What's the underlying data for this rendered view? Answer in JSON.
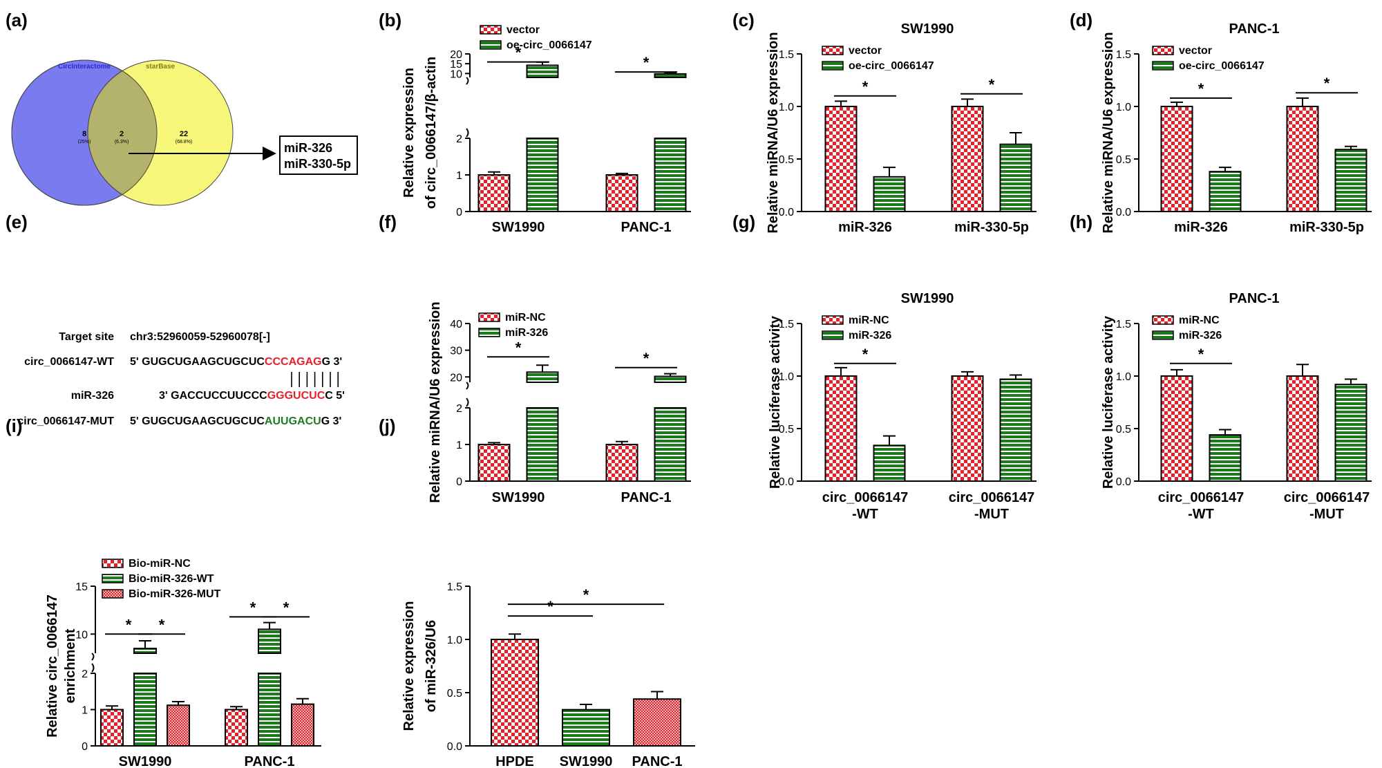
{
  "panel_labels": [
    "(a)",
    "(b)",
    "(c)",
    "(d)",
    "(e)",
    "(f)",
    "(g)",
    "(h)",
    "(i)",
    "(j)"
  ],
  "colors": {
    "red": "#e8202a",
    "green": "#1f7a1f",
    "venn_blue": "#7b7bf0",
    "venn_yellow": "#f7f77a",
    "venn_overlap": "#b3b36b"
  },
  "venn": {
    "left_label": "CircInteractome",
    "right_label": "starBase",
    "left_count": "8",
    "left_pct": "(25%)",
    "overlap_count": "2",
    "overlap_pct": "(6.3%)",
    "right_count": "22",
    "right_pct": "(68.8%)",
    "result_lines": [
      "miR-326",
      "miR-330-5p"
    ]
  },
  "sequences": {
    "target_label": "Target site",
    "target_value": "chr3:52960059-52960078[-]",
    "rows": [
      {
        "label": "circ_0066147-WT",
        "prefix": "5' GUGCUGAAGCUGCUC",
        "highlight": "CCCAGAG",
        "suffix": "G 3'",
        "color": "red"
      },
      {
        "label": "miR-326",
        "prefix": "3' GACCUCCUUCCC",
        "highlight": "GGGUCUC",
        "suffix": "C 5'",
        "color": "red"
      },
      {
        "label": "circ_0066147-MUT",
        "prefix": "5' GUGCUGAAGCUGCUC",
        "highlight": "AUUGACU",
        "suffix": "G 3'",
        "color": "green"
      }
    ],
    "pairing_lines": 7
  },
  "chart_data": [
    {
      "id": "b",
      "type": "bar",
      "title": "",
      "ylabel": [
        "Relative expression",
        "of circ_0066147/β-actin"
      ],
      "categories": [
        "SW1990",
        "PANC-1"
      ],
      "break": {
        "lower": [
          0,
          2
        ],
        "upper": [
          8,
          20
        ],
        "lower_ticks": [
          "0",
          "1",
          "2"
        ],
        "upper_ticks": [
          "10",
          "15",
          "20"
        ],
        "lower_tick_values": [
          0,
          1,
          2
        ],
        "upper_tick_values": [
          10,
          15,
          20
        ]
      },
      "series": [
        {
          "name": "vector",
          "pattern": "checker",
          "values": [
            1.0,
            1.0
          ],
          "errors": [
            0.08,
            0.04
          ]
        },
        {
          "name": "oe-circ_0066147",
          "pattern": "stripe",
          "values": [
            14.2,
            9.8
          ],
          "errors": [
            1.6,
            0.7
          ]
        }
      ],
      "significance": [
        {
          "from": [
            0,
            0
          ],
          "to": [
            0,
            1
          ],
          "value": 15.9,
          "label": "*"
        },
        {
          "from": [
            1,
            0
          ],
          "to": [
            1,
            1
          ],
          "value": 10.8,
          "label": "*"
        }
      ]
    },
    {
      "id": "c",
      "type": "bar",
      "title": "SW1990",
      "ylabel": [
        "Relative miRNA/U6 expression"
      ],
      "categories": [
        "miR-326",
        "miR-330-5p"
      ],
      "ylim": [
        0,
        1.5
      ],
      "ticks": [
        "0.0",
        "0.5",
        "1.0",
        "1.5"
      ],
      "tick_values": [
        0,
        0.5,
        1.0,
        1.5
      ],
      "series": [
        {
          "name": "vector",
          "pattern": "checker",
          "values": [
            1.0,
            1.0
          ],
          "errors": [
            0.05,
            0.07
          ]
        },
        {
          "name": "oe-circ_0066147",
          "pattern": "stripe",
          "values": [
            0.33,
            0.64
          ],
          "errors": [
            0.09,
            0.11
          ]
        }
      ],
      "significance": [
        {
          "from": [
            0,
            0
          ],
          "to": [
            0,
            1
          ],
          "value": 1.1,
          "label": "*"
        },
        {
          "from": [
            1,
            0
          ],
          "to": [
            1,
            1
          ],
          "value": 1.12,
          "label": "*"
        }
      ]
    },
    {
      "id": "d",
      "type": "bar",
      "title": "PANC-1",
      "ylabel": [
        "Relative miRNA/U6 expression"
      ],
      "categories": [
        "miR-326",
        "miR-330-5p"
      ],
      "ylim": [
        0,
        1.5
      ],
      "ticks": [
        "0.0",
        "0.5",
        "1.0",
        "1.5"
      ],
      "tick_values": [
        0,
        0.5,
        1.0,
        1.5
      ],
      "series": [
        {
          "name": "vector",
          "pattern": "checker",
          "values": [
            1.0,
            1.0
          ],
          "errors": [
            0.04,
            0.08
          ]
        },
        {
          "name": "oe-circ_0066147",
          "pattern": "stripe",
          "values": [
            0.38,
            0.59
          ],
          "errors": [
            0.04,
            0.03
          ]
        }
      ],
      "significance": [
        {
          "from": [
            0,
            0
          ],
          "to": [
            0,
            1
          ],
          "value": 1.08,
          "label": "*"
        },
        {
          "from": [
            1,
            0
          ],
          "to": [
            1,
            1
          ],
          "value": 1.13,
          "label": "*"
        }
      ]
    },
    {
      "id": "f",
      "type": "bar",
      "title": "",
      "ylabel": [
        "Relative miRNA/U6 expression"
      ],
      "categories": [
        "SW1990",
        "PANC-1"
      ],
      "break": {
        "lower": [
          0,
          2
        ],
        "upper": [
          18,
          40
        ],
        "lower_ticks": [
          "0",
          "1",
          "2"
        ],
        "upper_ticks": [
          "20",
          "30",
          "40"
        ],
        "lower_tick_values": [
          0,
          1,
          2
        ],
        "upper_tick_values": [
          20,
          30,
          40
        ]
      },
      "series": [
        {
          "name": "miR-NC",
          "pattern": "checker",
          "values": [
            1.0,
            1.0
          ],
          "errors": [
            0.05,
            0.08
          ]
        },
        {
          "name": "miR-326",
          "pattern": "stripe",
          "values": [
            21.8,
            20.2
          ],
          "errors": [
            2.6,
            1.0
          ]
        }
      ],
      "significance": [
        {
          "from": [
            0,
            0
          ],
          "to": [
            0,
            1
          ],
          "value": 27.5,
          "label": "*"
        },
        {
          "from": [
            1,
            0
          ],
          "to": [
            1,
            1
          ],
          "value": 23.5,
          "label": "*"
        }
      ]
    },
    {
      "id": "g",
      "type": "bar",
      "title": "SW1990",
      "ylabel": [
        "Relative luciferase activity"
      ],
      "categories": [
        "circ_0066147\n-WT",
        "circ_0066147\n-MUT"
      ],
      "ylim": [
        0,
        1.5
      ],
      "ticks": [
        "0.0",
        "0.5",
        "1.0",
        "1.5"
      ],
      "tick_values": [
        0,
        0.5,
        1.0,
        1.5
      ],
      "series": [
        {
          "name": "miR-NC",
          "pattern": "checker",
          "values": [
            1.0,
            1.0
          ],
          "errors": [
            0.08,
            0.04
          ]
        },
        {
          "name": "miR-326",
          "pattern": "stripe",
          "values": [
            0.34,
            0.97
          ],
          "errors": [
            0.09,
            0.04
          ]
        }
      ],
      "significance": [
        {
          "from": [
            0,
            0
          ],
          "to": [
            0,
            1
          ],
          "value": 1.12,
          "label": "*"
        }
      ]
    },
    {
      "id": "h",
      "type": "bar",
      "title": "PANC-1",
      "ylabel": [
        "Relative luciferase activity"
      ],
      "categories": [
        "circ_0066147\n-WT",
        "circ_0066147\n-MUT"
      ],
      "ylim": [
        0,
        1.5
      ],
      "ticks": [
        "0.0",
        "0.5",
        "1.0",
        "1.5"
      ],
      "tick_values": [
        0,
        0.5,
        1.0,
        1.5
      ],
      "series": [
        {
          "name": "miR-NC",
          "pattern": "checker",
          "values": [
            1.0,
            1.0
          ],
          "errors": [
            0.06,
            0.11
          ]
        },
        {
          "name": "miR-326",
          "pattern": "stripe",
          "values": [
            0.44,
            0.92
          ],
          "errors": [
            0.05,
            0.05
          ]
        }
      ],
      "significance": [
        {
          "from": [
            0,
            0
          ],
          "to": [
            0,
            1
          ],
          "value": 1.12,
          "label": "*"
        }
      ]
    },
    {
      "id": "i",
      "type": "bar",
      "title": "",
      "ylabel": [
        "Relative circ_0066147",
        "enrichment"
      ],
      "categories": [
        "SW1990",
        "PANC-1"
      ],
      "break": {
        "lower": [
          0,
          2
        ],
        "upper": [
          8,
          15
        ],
        "lower_ticks": [
          "0",
          "1",
          "2"
        ],
        "upper_ticks": [
          "10",
          "15"
        ],
        "lower_tick_values": [
          0,
          1,
          2
        ],
        "upper_tick_values": [
          10,
          15
        ]
      },
      "series": [
        {
          "name": "Bio-miR-NC",
          "pattern": "checker",
          "values": [
            1.0,
            1.0
          ],
          "errors": [
            0.1,
            0.08
          ]
        },
        {
          "name": "Bio-miR-326-WT",
          "pattern": "stripe",
          "values": [
            8.5,
            10.5
          ],
          "errors": [
            0.8,
            0.7
          ]
        },
        {
          "name": "Bio-miR-326-MUT",
          "pattern": "fine",
          "values": [
            1.12,
            1.15
          ],
          "errors": [
            0.1,
            0.15
          ]
        }
      ],
      "significance": [
        {
          "from": [
            0,
            0
          ],
          "to": [
            0,
            1
          ],
          "value": 10.0,
          "label": "*"
        },
        {
          "from": [
            0,
            1
          ],
          "to": [
            0,
            2
          ],
          "value": 10.0,
          "label": "*"
        },
        {
          "from": [
            1,
            0
          ],
          "to": [
            1,
            1
          ],
          "value": 11.8,
          "label": "*"
        },
        {
          "from": [
            1,
            1
          ],
          "to": [
            1,
            2
          ],
          "value": 11.8,
          "label": "*"
        }
      ]
    },
    {
      "id": "j",
      "type": "bar",
      "title": "",
      "ylabel": [
        "Relative expression",
        "of miR-326/U6"
      ],
      "categories": [
        "HPDE",
        "SW1990",
        "PANC-1"
      ],
      "ylim": [
        0,
        1.5
      ],
      "ticks": [
        "0.0",
        "0.5",
        "1.0",
        "1.5"
      ],
      "tick_values": [
        0,
        0.5,
        1.0,
        1.5
      ],
      "series": [
        {
          "name": "",
          "pattern_per_bar": [
            "checker",
            "stripe",
            "fine"
          ],
          "values": [
            1.0,
            0.34,
            0.44
          ],
          "errors": [
            0.05,
            0.05,
            0.07
          ]
        }
      ],
      "significance": [
        {
          "from": [
            0,
            0
          ],
          "to": [
            1,
            0
          ],
          "value": 1.22,
          "label": "*"
        },
        {
          "from": [
            0,
            0
          ],
          "to": [
            2,
            0
          ],
          "value": 1.33,
          "label": "*"
        }
      ]
    }
  ]
}
